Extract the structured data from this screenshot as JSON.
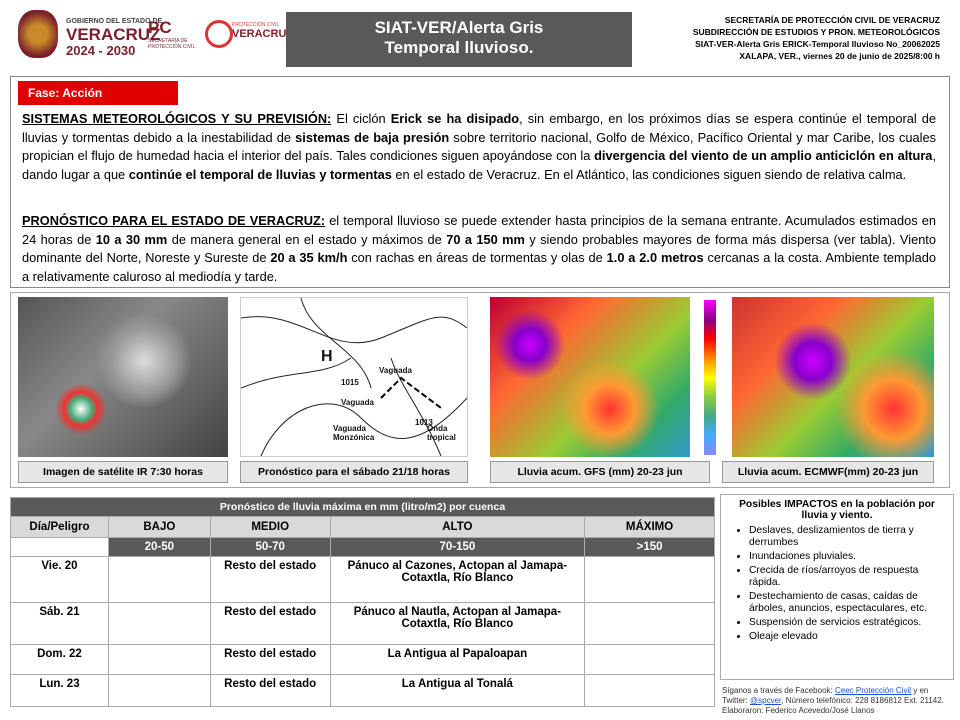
{
  "header": {
    "gov_line": "GOBIERNO DEL ESTADO DE",
    "gov_state": "VERACRUZ",
    "gov_years": "2024 - 2030",
    "pc": "PC",
    "pc_text": "SECRETARÍA DE PROTECCIÓN CIVIL",
    "pcv_top": "PROTECCIÓN CIVIL",
    "pcv_bottom": "VERACRUZ",
    "title": "SIAT-VER/Alerta Gris",
    "subtitle": "Temporal lluvioso.",
    "info": [
      "SECRETARÍA DE PROTECCIÓN CIVIL DE VERACRUZ",
      "SUBDIRECCIÓN DE ESTUDIOS Y PRON. METEOROLÓGICOS",
      "SIAT-VER-Alerta Gris ERICK-Temporal lluvioso No_20062025",
      "XALAPA, VER., viernes 20 de junio de 2025/8:00  h"
    ]
  },
  "phase": "Fase: Acción",
  "paragraphs": [
    {
      "heading": "SISTEMAS METEOROLÓGICOS Y SU PREVISIÓN:",
      "segments": [
        " El ciclón ",
        "Erick se ha disipado",
        ", sin embargo, en los próximos días se espera continúe el temporal de lluvias y tormentas debido a la inestabilidad de ",
        "sistemas de baja presión",
        " sobre territorio nacional, Golfo de México, Pacífico Oriental y mar Caribe, los cuales propician el flujo de humedad hacia el interior del país. Tales condiciones siguen apoyándose con la ",
        "divergencia del viento de un amplio anticiclón en altura",
        ", dando lugar a que ",
        "continúe el temporal de lluvias y tormentas",
        " en el estado de Veracruz. En el Atlántico, las condiciones  siguen siendo de relativa calma."
      ]
    },
    {
      "heading": "PRONÓSTICO PARA EL ESTADO DE VERACRUZ:",
      "segments": [
        " el temporal lluvioso se puede extender hasta principios de la semana entrante. Acumulados estimados en 24 horas de ",
        "10 a 30 mm",
        " de manera general en el estado y máximos de ",
        "70 a 150 mm",
        " y siendo probables mayores de forma más dispersa (ver tabla). Viento dominante del Norte, Noreste y Sureste de ",
        "20 a 35 km/h",
        " con rachas en áreas de tormentas y olas de ",
        "1.0 a 2.0 metros",
        " cercanas  a la costa. Ambiente templado a relativamente caluroso al mediodía  y tarde."
      ]
    }
  ],
  "images": [
    {
      "caption": "Imagen de satélite IR 7:30 horas"
    },
    {
      "caption": "Pronóstico para el sábado 21/18 horas",
      "labels": [
        "H",
        "Vaguada",
        "Vaguada",
        "Vaguada Monzónica",
        "Onda tropical",
        "1015",
        "1013"
      ]
    },
    {
      "caption": "Lluvia acum. GFS (mm) 20-23 jun"
    },
    {
      "caption": "Lluvia acum. ECMWF(mm) 20-23 jun"
    }
  ],
  "table": {
    "title": "Pronóstico  de lluvia máxima en mm (litro/m2) por cuenca",
    "header": [
      "Día/Peligro",
      "BAJO",
      "MEDIO",
      "ALTO",
      "MÁXIMO"
    ],
    "ranges": [
      "20-50",
      "50-70",
      "70-150",
      ">150"
    ],
    "rows": [
      [
        "Vie. 20",
        "Resto del estado",
        "Pánuco al Cazones, Actopan al Jamapa-Cotaxtla,  Río Blanco"
      ],
      [
        "Sáb. 21",
        "Resto del estado",
        "Pánuco al Nautla, Actopan al Jamapa-Cotaxtla,  Río Blanco"
      ],
      [
        "Dom. 22",
        "Resto del estado",
        "La Antigua al Papaloapan"
      ],
      [
        "Lun. 23",
        "Resto del estado",
        "La Antigua al Tonalá"
      ]
    ]
  },
  "impacts": {
    "title": "Posibles IMPACTOS  en la población por lluvia y viento.",
    "items": [
      "Deslaves, deslizamientos de tierra y derrumbes",
      "Inundaciones pluviales.",
      "Crecida de ríos/arroyos de respuesta rápida.",
      "Destechamiento de casas, caídas de árboles, anuncios, espectaculares, etc.",
      "Suspensión de servicios estratégicos.",
      "Oleaje elevado"
    ]
  },
  "footer": {
    "line1": "Síganos a través de Facebook:",
    "link1": "Ceec Protección Civil",
    "line1b": " y en",
    "line2": "Twitter:",
    "link2": "@spcver",
    "line2b": ", Número telefónico: 228 8186812 Ext. 21142.",
    "line3": "Elaboraron: Federico Acevedo/José Llanos"
  }
}
